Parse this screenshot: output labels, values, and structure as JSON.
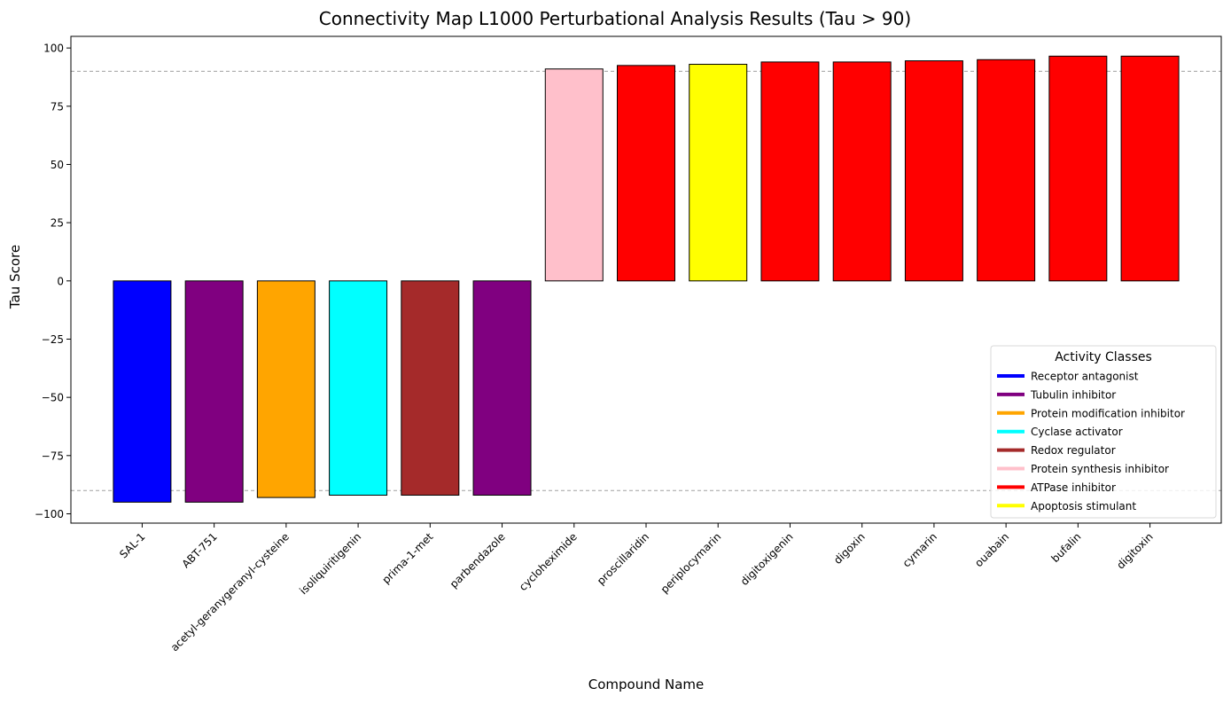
{
  "chart_data": {
    "type": "bar",
    "title": "Connectivity Map L1000 Perturbational Analysis Results (Tau > 90)",
    "xlabel": "Compound Name",
    "ylabel": "Tau Score",
    "ylim": [
      -104,
      105
    ],
    "yticks": [
      100,
      75,
      50,
      25,
      0,
      -25,
      -50,
      -75,
      -100
    ],
    "ytick_labels": [
      "100",
      "75",
      "50",
      "25",
      "0",
      "−25",
      "−50",
      "−75",
      "−100"
    ],
    "reference_lines": [
      90,
      -90
    ],
    "categories": [
      "SAL-1",
      "ABT-751",
      "acetyl-geranygeranyl-cysteine",
      "isoliquiritigenin",
      "prima-1-met",
      "parbendazole",
      "cycloheximide",
      "proscillaridin",
      "periplocymarin",
      "digitoxigenin",
      "digoxin",
      "cymarin",
      "ouabain",
      "bufalin",
      "digitoxin"
    ],
    "values": [
      -95,
      -95,
      -93,
      -92,
      -92,
      -92,
      91,
      92.5,
      93,
      94,
      94,
      94.5,
      95,
      96.5,
      96.5
    ],
    "bar_colors": [
      "#0000ff",
      "#800080",
      "#ffa500",
      "#00ffff",
      "#a52a2a",
      "#800080",
      "#ffc0cb",
      "#ff0000",
      "#ffff00",
      "#ff0000",
      "#ff0000",
      "#ff0000",
      "#ff0000",
      "#ff0000",
      "#ff0000"
    ],
    "legend": {
      "title": "Activity Classes",
      "placement": "bottom-right",
      "entries": [
        {
          "label": "Receptor antagonist",
          "color": "#0000ff"
        },
        {
          "label": "Tubulin inhibitor",
          "color": "#800080"
        },
        {
          "label": "Protein modification inhibitor",
          "color": "#ffa500"
        },
        {
          "label": "Cyclase activator",
          "color": "#00ffff"
        },
        {
          "label": "Redox regulator",
          "color": "#a52a2a"
        },
        {
          "label": "Protein synthesis inhibitor",
          "color": "#ffc0cb"
        },
        {
          "label": "ATPase inhibitor",
          "color": "#ff0000"
        },
        {
          "label": "Apoptosis stimulant",
          "color": "#ffff00"
        }
      ]
    }
  }
}
